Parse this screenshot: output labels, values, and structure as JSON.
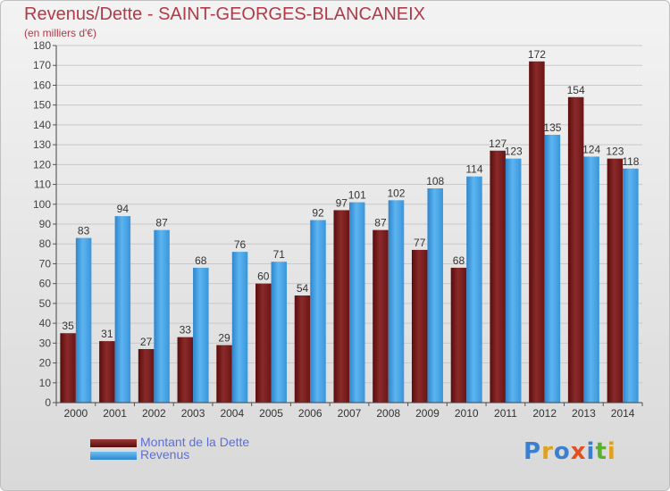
{
  "header": {
    "title": "Revenus/Dette - SAINT-GEORGES-BLANCANEIX",
    "subtitle": "(en milliers d'€)"
  },
  "legend": [
    {
      "label": "Montant de la Dette",
      "color": "#7a1f1f"
    },
    {
      "label": "Revenus",
      "color": "#3b9be0"
    }
  ],
  "logo": {
    "text": "Proxiti",
    "colors": [
      "#3b7fd0",
      "#e0a020",
      "#3b7fd0",
      "#e05020",
      "#3b7fd0",
      "#5ab030",
      "#e0a020"
    ]
  },
  "chart_data": {
    "type": "bar",
    "categories": [
      "2000",
      "2001",
      "2002",
      "2003",
      "2004",
      "2005",
      "2006",
      "2007",
      "2008",
      "2009",
      "2010",
      "2011",
      "2012",
      "2013",
      "2014"
    ],
    "series": [
      {
        "name": "Montant de la Dette",
        "color": "#7a1f1f",
        "values": [
          35,
          31,
          27,
          33,
          29,
          60,
          54,
          97,
          87,
          77,
          68,
          127,
          172,
          154,
          123
        ]
      },
      {
        "name": "Revenus",
        "color": "#3b9be0",
        "values": [
          83,
          94,
          87,
          68,
          76,
          71,
          92,
          101,
          102,
          108,
          114,
          123,
          135,
          124,
          118
        ]
      }
    ],
    "ylim": [
      0,
      180
    ],
    "ytick_step": 10,
    "grid": true,
    "legend_position": "bottom-left"
  }
}
